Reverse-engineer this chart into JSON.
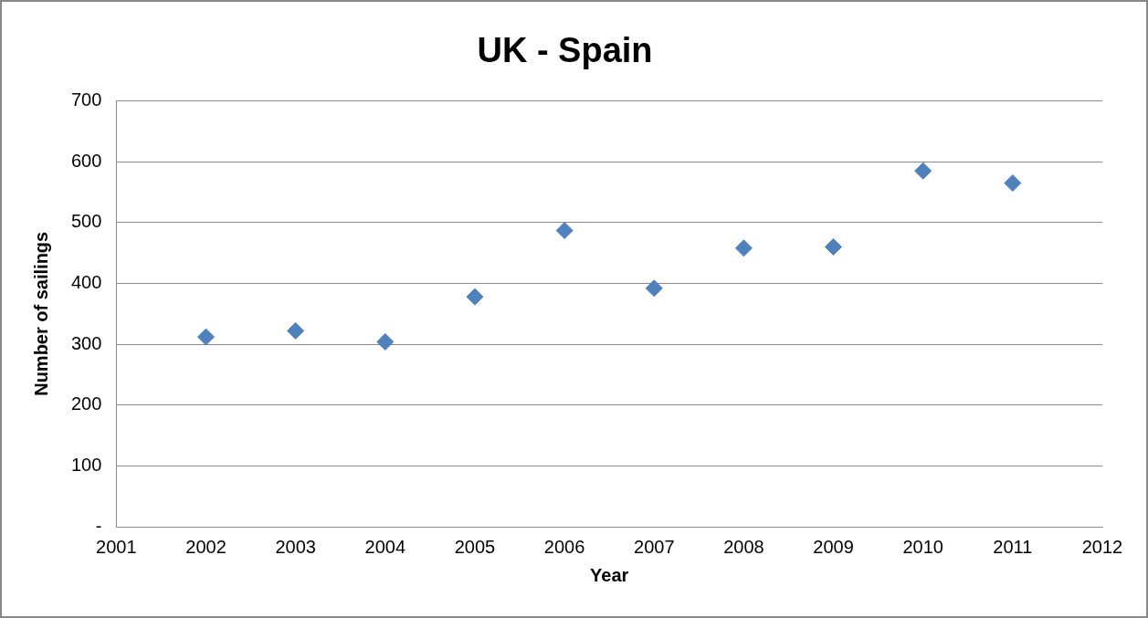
{
  "chart_data": {
    "type": "scatter",
    "title": "UK - Spain",
    "xlabel": "Year",
    "ylabel": "Number of sailings",
    "x": [
      2002,
      2003,
      2004,
      2005,
      2006,
      2007,
      2008,
      2009,
      2010,
      2011
    ],
    "series": [
      {
        "color": "#4f81bd",
        "values": [
          312,
          322,
          304,
          378,
          487,
          392,
          458,
          460,
          585,
          565
        ]
      }
    ],
    "xlim": [
      2001,
      2012
    ],
    "xticks": [
      2001,
      2002,
      2003,
      2004,
      2005,
      2006,
      2007,
      2008,
      2009,
      2010,
      2011,
      2012
    ],
    "ylim": [
      0,
      700
    ],
    "yticks": [
      {
        "value": 0,
        "label": "-"
      },
      100,
      200,
      300,
      400,
      500,
      600,
      700
    ],
    "grid": "y",
    "legend": false,
    "marker": "diamond"
  }
}
